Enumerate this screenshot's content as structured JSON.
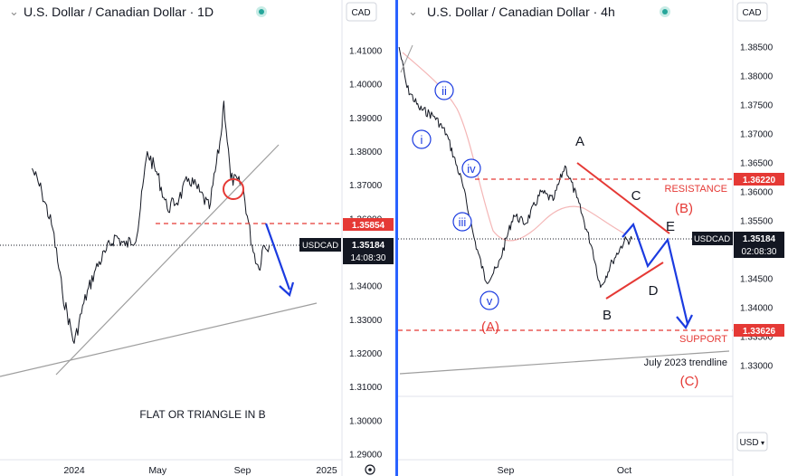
{
  "left_panel": {
    "symbol_title": "U.S. Dollar / Canadian Dollar · 1D",
    "currency_button": "CAD",
    "axis_button": "⚙",
    "annotation": "FLAT OR TRIANGLE IN B",
    "price_badge": {
      "label": "USDCAD",
      "price": "1.35184",
      "countdown": "14:08:30"
    },
    "level_badge": "1.35854"
  },
  "right_panel": {
    "symbol_title": "U.S. Dollar / Canadian Dollar · 4h",
    "currency_button": "CAD",
    "axis_currency": "USD",
    "price_badge": {
      "label": "USDCAD",
      "price": "1.35184",
      "countdown": "02:08:30"
    },
    "resistance_badge": "1.36220",
    "support_badge": "1.33626",
    "labels": {
      "resistance": "RESISTANCE",
      "support": "SUPPORT",
      "trendline": "July 2023 trendline",
      "wave_A_upper": "A",
      "wave_B_lower": "B",
      "wave_C_lower": "C",
      "wave_D_lower": "D",
      "wave_E_lower": "E",
      "wave_A_paren": "(A)",
      "wave_B_paren": "(B)",
      "wave_C_paren": "(C)",
      "wave_i": "i",
      "wave_ii": "ii",
      "wave_iii": "iii",
      "wave_iv": "iv",
      "wave_v": "v"
    }
  },
  "colors": {
    "red": "#e53935",
    "blue": "#1b3be0",
    "grey_line": "#9e9e9e",
    "badge_black": "#131722",
    "accent_green": "#26a69a"
  },
  "chart_data": [
    {
      "type": "line",
      "name": "USDCAD daily",
      "y_ticks": [
        "1.41000",
        "1.40000",
        "1.39000",
        "1.38000",
        "1.37000",
        "1.36000",
        "1.35000",
        "1.34000",
        "1.33000",
        "1.32000",
        "1.31000",
        "1.30000",
        "1.29000"
      ],
      "x_ticks": [
        "2024",
        "May",
        "Sep",
        "2025"
      ],
      "ylim": [
        1.285,
        1.4155
      ],
      "x": [
        "2023-11-01",
        "2023-11-15",
        "2023-12-01",
        "2023-12-15",
        "2024-01-01",
        "2024-01-15",
        "2024-02-01",
        "2024-02-15",
        "2024-03-01",
        "2024-03-15",
        "2024-04-01",
        "2024-04-16",
        "2024-05-01",
        "2024-05-15",
        "2024-06-01",
        "2024-06-15",
        "2024-07-01",
        "2024-07-15",
        "2024-08-01",
        "2024-08-05",
        "2024-08-15",
        "2024-09-01",
        "2024-09-15",
        "2024-09-25",
        "2024-10-01",
        "2024-10-10"
      ],
      "values": [
        1.375,
        1.368,
        1.357,
        1.338,
        1.323,
        1.335,
        1.345,
        1.35,
        1.355,
        1.352,
        1.355,
        1.38,
        1.373,
        1.363,
        1.366,
        1.372,
        1.368,
        1.363,
        1.385,
        1.395,
        1.372,
        1.37,
        1.352,
        1.345,
        1.352,
        1.352
      ],
      "last_price": 1.35184,
      "horizontal_level": 1.35854
    },
    {
      "type": "line",
      "name": "USDCAD 4h",
      "y_ticks": [
        "1.38500",
        "1.38000",
        "1.37500",
        "1.37000",
        "1.36500",
        "1.36000",
        "1.35500",
        "1.35000",
        "1.34500",
        "1.34000",
        "1.33500",
        "1.33000"
      ],
      "x_ticks": [
        "Sep",
        "Oct"
      ],
      "ylim": [
        1.325,
        1.3888
      ],
      "x": [
        "2024-08-05",
        "2024-08-07",
        "2024-08-10",
        "2024-08-14",
        "2024-08-17",
        "2024-08-21",
        "2024-08-24",
        "2024-08-27",
        "2024-08-30",
        "2024-09-03",
        "2024-09-06",
        "2024-09-10",
        "2024-09-13",
        "2024-09-16",
        "2024-09-19",
        "2024-09-23",
        "2024-09-25",
        "2024-09-28",
        "2024-10-01",
        "2024-10-03"
      ],
      "values": [
        1.385,
        1.378,
        1.3745,
        1.373,
        1.37,
        1.3615,
        1.352,
        1.3445,
        1.347,
        1.356,
        1.3545,
        1.36,
        1.3585,
        1.3645,
        1.359,
        1.35,
        1.3435,
        1.348,
        1.3515,
        1.3518
      ],
      "last_price": 1.35184,
      "resistance": 1.3622,
      "support": 1.33626
    }
  ]
}
